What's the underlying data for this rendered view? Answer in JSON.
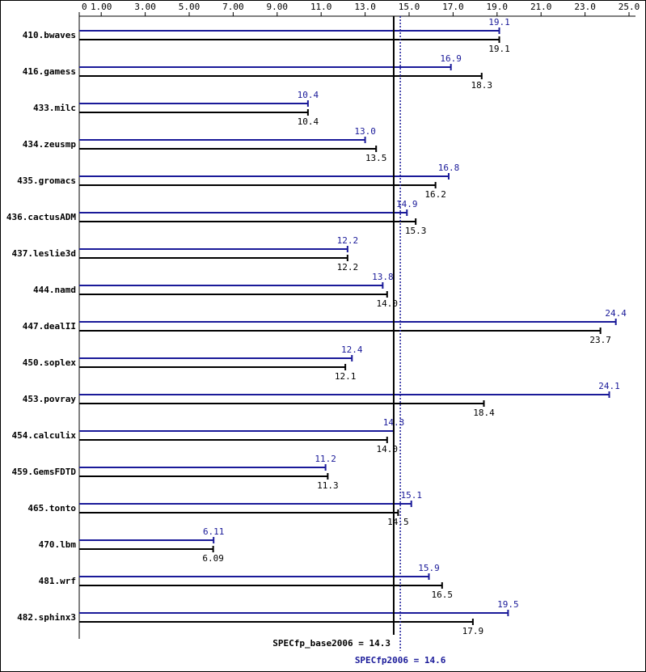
{
  "chart_data": {
    "type": "bar",
    "categories": [
      "410.bwaves",
      "416.gamess",
      "433.milc",
      "434.zeusmp",
      "435.gromacs",
      "436.cactusADM",
      "437.leslie3d",
      "444.namd",
      "447.dealII",
      "450.soplex",
      "453.povray",
      "454.calculix",
      "459.GemsFDTD",
      "465.tonto",
      "470.lbm",
      "481.wrf",
      "482.sphinx3"
    ],
    "series": [
      {
        "color": "#1a1a99",
        "values": [
          19.1,
          16.9,
          10.4,
          13.0,
          16.8,
          14.9,
          12.2,
          13.8,
          24.4,
          12.4,
          24.1,
          14.3,
          11.2,
          15.1,
          6.11,
          15.9,
          19.5
        ],
        "value_labels": [
          "19.1",
          "16.9",
          "10.4",
          "13.0",
          "16.8",
          "14.9",
          "12.2",
          "13.8",
          "24.4",
          "12.4",
          "24.1",
          "14.3",
          "11.2",
          "15.1",
          "6.11",
          "15.9",
          "19.5"
        ]
      },
      {
        "color": "#000000",
        "values": [
          19.1,
          18.3,
          10.4,
          13.5,
          16.2,
          15.3,
          12.2,
          14.0,
          23.7,
          12.1,
          18.4,
          14.0,
          11.3,
          14.5,
          6.09,
          16.5,
          17.9
        ],
        "value_labels": [
          "19.1",
          "18.3",
          "10.4",
          "13.5",
          "16.2",
          "15.3",
          "12.2",
          "14.0",
          "23.7",
          "12.1",
          "18.4",
          "14.0",
          "11.3",
          "14.5",
          "6.09",
          "16.5",
          "17.9"
        ]
      }
    ],
    "xlim": [
      0,
      25
    ],
    "xticks": [
      0,
      {
        "value": 1,
        "label": "1.00"
      },
      {
        "value": 3,
        "label": "3.00"
      },
      {
        "value": 5,
        "label": "5.00"
      },
      {
        "value": 7,
        "label": "7.00"
      },
      {
        "value": 9,
        "label": "9.00"
      },
      {
        "value": 11,
        "label": "11.0"
      },
      {
        "value": 13,
        "label": "13.0"
      },
      {
        "value": 15,
        "label": "15.0"
      },
      {
        "value": 17,
        "label": "17.0"
      },
      {
        "value": 19,
        "label": "19.0"
      },
      {
        "value": 21,
        "label": "21.0"
      },
      {
        "value": 23,
        "label": "23.0"
      },
      {
        "value": 25,
        "label": "25.0"
      }
    ],
    "reference_lines": [
      {
        "label": "SPECfp_base2006 = 14.3",
        "value": 14.3,
        "color": "#000000"
      },
      {
        "label": "SPECfp2006 = 14.6",
        "value": 14.6,
        "color": "#1a1a99"
      }
    ]
  }
}
